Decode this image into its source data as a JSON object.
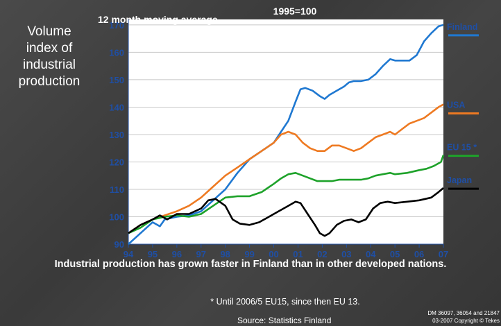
{
  "slide": {
    "title": "Volume\nindex of\nindustrial\nproduction",
    "caption": "Industrial production has grown faster in Finland than in other developed nations.",
    "footnote": "* Until 2006/5 EU15, since then EU 13.",
    "source": "Source: Statistics Finland",
    "credits": "DM 36097, 36054 and 21847\n03-2007 Copyright © Tekes"
  },
  "colors": {
    "Finland": "#1f78d1",
    "USA": "#ee7a22",
    "EU 15 *": "#1ea22a",
    "Japan": "#000000",
    "label": "#1f4fa5"
  },
  "chart_data": {
    "type": "line",
    "title": "1995=100",
    "subtitle": "12 month moving average",
    "xlabel": "",
    "ylabel": "",
    "x_tick_labels": [
      "94",
      "95",
      "96",
      "97",
      "98",
      "99",
      "00",
      "01",
      "02",
      "03",
      "04",
      "05",
      "06",
      "07"
    ],
    "y_ticks": [
      90,
      100,
      110,
      120,
      130,
      140,
      150,
      160,
      170
    ],
    "xlim": [
      1994,
      2007
    ],
    "ylim": [
      90,
      172
    ],
    "grid": "horizontal",
    "legend": "right (labels at line ends)",
    "series": [
      {
        "name": "Finland",
        "x": [
          1994,
          1994.5,
          1995,
          1995.3,
          1995.5,
          1996,
          1996.5,
          1997,
          1997.5,
          1998,
          1998.5,
          1999,
          1999.5,
          2000,
          2000.3,
          2000.6,
          2000.9,
          2001.1,
          2001.3,
          2001.6,
          2001.9,
          2002.1,
          2002.3,
          2002.6,
          2002.9,
          2003.1,
          2003.3,
          2003.6,
          2003.9,
          2004.2,
          2004.5,
          2004.8,
          2005,
          2005.3,
          2005.6,
          2005.9,
          2006.2,
          2006.5,
          2006.8,
          2007
        ],
        "y": [
          90,
          94,
          98,
          96.5,
          99,
          100,
          100.5,
          102,
          106,
          110,
          116,
          121,
          124,
          127,
          131,
          135,
          142,
          146.5,
          147,
          146,
          144,
          143,
          144.5,
          146,
          147.5,
          149,
          149.5,
          149.5,
          150,
          152,
          155,
          157.5,
          157,
          157,
          157,
          159,
          164,
          167,
          169.5,
          170
        ]
      },
      {
        "name": "USA",
        "x": [
          1994,
          1994.5,
          1995,
          1995.5,
          1996,
          1996.5,
          1997,
          1997.5,
          1998,
          1998.5,
          1999,
          1999.5,
          2000,
          2000.3,
          2000.6,
          2000.9,
          2001.2,
          2001.5,
          2001.8,
          2002.1,
          2002.4,
          2002.7,
          2003,
          2003.3,
          2003.6,
          2003.9,
          2004.2,
          2004.5,
          2004.8,
          2005,
          2005.3,
          2005.6,
          2005.9,
          2006.2,
          2006.5,
          2006.8,
          2007
        ],
        "y": [
          94,
          97,
          99,
          100.5,
          102,
          104,
          107,
          111,
          115,
          118,
          121,
          124,
          127,
          130,
          131,
          130,
          127,
          125,
          124,
          124,
          126,
          126,
          125,
          124,
          125,
          127,
          129,
          130,
          131,
          130,
          132,
          134,
          135,
          136,
          138,
          140,
          141
        ]
      },
      {
        "name": "EU 15 *",
        "x": [
          1994,
          1994.5,
          1995,
          1995.5,
          1996,
          1996.5,
          1997,
          1997.5,
          1998,
          1998.5,
          1999,
          1999.5,
          2000,
          2000.3,
          2000.6,
          2000.9,
          2001.2,
          2001.5,
          2001.8,
          2002.1,
          2002.4,
          2002.7,
          2003,
          2003.3,
          2003.6,
          2003.9,
          2004.2,
          2004.5,
          2004.8,
          2005,
          2005.5,
          2006,
          2006.3,
          2006.6,
          2006.9,
          2007
        ],
        "y": [
          94,
          96,
          99,
          100,
          100.5,
          100,
          101,
          104,
          107,
          107.5,
          107.5,
          109,
          112,
          114,
          115.5,
          116,
          115,
          114,
          113,
          113,
          113,
          113.5,
          113.5,
          113.5,
          113.5,
          114,
          115,
          115.5,
          116,
          115.5,
          116,
          117,
          117.5,
          118.5,
          120,
          122.5
        ]
      },
      {
        "name": "Japan",
        "x": [
          1994,
          1994.5,
          1995,
          1995.3,
          1995.6,
          1996,
          1996.5,
          1997,
          1997.3,
          1997.6,
          1998,
          1998.3,
          1998.6,
          1999,
          1999.4,
          1999.8,
          2000.2,
          2000.6,
          2000.9,
          2001.1,
          2001.4,
          2001.7,
          2001.9,
          2002.1,
          2002.3,
          2002.6,
          2002.9,
          2003.2,
          2003.5,
          2003.8,
          2004.1,
          2004.4,
          2004.7,
          2005,
          2005.5,
          2006,
          2006.5,
          2006.8,
          2007
        ],
        "y": [
          94,
          97,
          99,
          100.5,
          99,
          101,
          101,
          103,
          106,
          106.5,
          104,
          99,
          97.5,
          97,
          98,
          100,
          102,
          104,
          105.5,
          105,
          101,
          97,
          94,
          93,
          94,
          97,
          98.5,
          99,
          98,
          99,
          103,
          105,
          105.5,
          105,
          105.5,
          106,
          107,
          109,
          110.5
        ]
      }
    ]
  }
}
